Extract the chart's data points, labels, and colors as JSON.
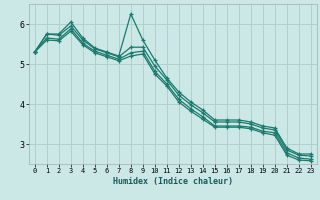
{
  "xlabel": "Humidex (Indice chaleur)",
  "background_color": "#cce8e6",
  "grid_color": "#b0d0ce",
  "line_color": "#1a7a6e",
  "xlim": [
    -0.5,
    23.5
  ],
  "ylim": [
    2.5,
    6.5
  ],
  "yticks": [
    3,
    4,
    5,
    6
  ],
  "xticks": [
    0,
    1,
    2,
    3,
    4,
    5,
    6,
    7,
    8,
    9,
    10,
    11,
    12,
    13,
    14,
    15,
    16,
    17,
    18,
    19,
    20,
    21,
    22,
    23
  ],
  "series": [
    [
      5.3,
      5.75,
      5.75,
      6.05,
      5.65,
      5.4,
      5.3,
      5.2,
      6.25,
      5.6,
      5.1,
      4.65,
      4.3,
      4.05,
      3.85,
      3.6,
      3.6,
      3.6,
      3.55,
      3.45,
      3.4,
      2.9,
      2.75,
      2.75
    ],
    [
      5.3,
      5.75,
      5.72,
      5.95,
      5.6,
      5.38,
      5.28,
      5.18,
      5.42,
      5.42,
      4.95,
      4.6,
      4.22,
      3.98,
      3.78,
      3.55,
      3.55,
      3.55,
      3.5,
      3.4,
      3.35,
      2.85,
      2.72,
      2.7
    ],
    [
      5.3,
      5.65,
      5.62,
      5.88,
      5.52,
      5.32,
      5.22,
      5.12,
      5.28,
      5.32,
      4.82,
      4.5,
      4.12,
      3.88,
      3.68,
      3.45,
      3.45,
      3.45,
      3.42,
      3.32,
      3.28,
      2.78,
      2.65,
      2.62
    ],
    [
      5.3,
      5.6,
      5.58,
      5.82,
      5.48,
      5.28,
      5.18,
      5.08,
      5.2,
      5.25,
      4.75,
      4.45,
      4.05,
      3.82,
      3.62,
      3.42,
      3.42,
      3.42,
      3.38,
      3.28,
      3.22,
      2.72,
      2.6,
      2.58
    ]
  ]
}
